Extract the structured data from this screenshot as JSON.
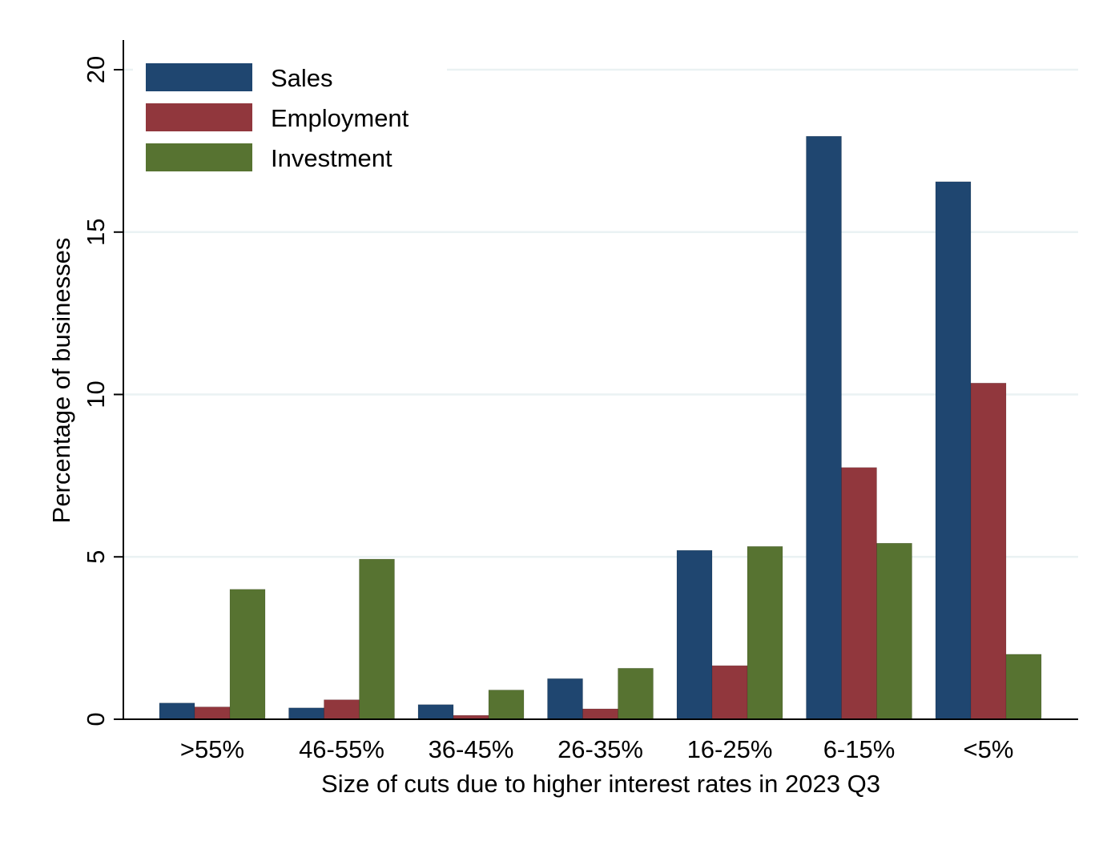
{
  "chart_data": {
    "type": "bar",
    "categories": [
      ">55%",
      "46-55%",
      "36-45%",
      "26-35%",
      "16-25%",
      "6-15%",
      "<5%"
    ],
    "series": [
      {
        "name": "Sales",
        "color": "#1f4670",
        "values": [
          0.5,
          0.35,
          0.45,
          1.25,
          5.2,
          17.95,
          16.55
        ]
      },
      {
        "name": "Employment",
        "color": "#91373d",
        "values": [
          0.38,
          0.6,
          0.12,
          0.32,
          1.65,
          7.75,
          10.35
        ]
      },
      {
        "name": "Investment",
        "color": "#577331",
        "values": [
          4.0,
          4.93,
          0.9,
          1.57,
          5.32,
          5.42,
          2.0
        ]
      }
    ],
    "xlabel": "Size of cuts due to higher interest rates in 2023 Q3",
    "ylabel": "Percentage of businesses",
    "ylim": [
      0,
      20
    ],
    "yticks": [
      0,
      5,
      10,
      15,
      20
    ],
    "grid": true,
    "legend_position": "top-left"
  }
}
